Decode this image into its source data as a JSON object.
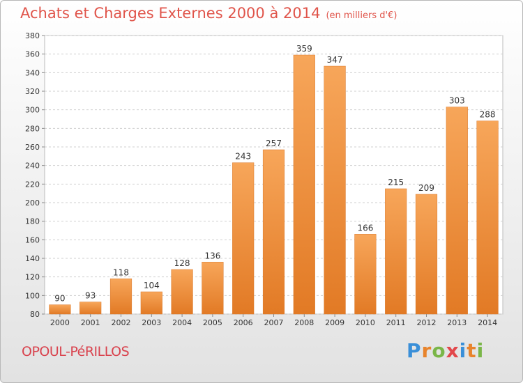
{
  "header": {
    "title": "Achats et Charges Externes 2000 à 2014",
    "unit": "(en milliers d'€)"
  },
  "footer": {
    "commune": "OPOUL-PéRILLOS",
    "logo_letters": [
      "P",
      "r",
      "o",
      "x",
      "i",
      "t",
      "i"
    ],
    "logo_colors": [
      "#3a8fd8",
      "#e8842c",
      "#7ab648",
      "#e2474b",
      "#3a8fd8",
      "#e8842c",
      "#7ab648"
    ]
  },
  "colors": {
    "bar_light": "#f7a65a",
    "bar_dark": "#e27a25",
    "title": "#e0544a"
  },
  "chart_data": {
    "type": "bar",
    "categories": [
      "2000",
      "2001",
      "2002",
      "2003",
      "2004",
      "2005",
      "2006",
      "2007",
      "2008",
      "2009",
      "2010",
      "2011",
      "2012",
      "2013",
      "2014"
    ],
    "values": [
      90,
      93,
      118,
      104,
      128,
      136,
      243,
      257,
      359,
      347,
      166,
      215,
      209,
      303,
      288
    ],
    "title": "Achats et Charges Externes 2000 à 2014",
    "ylim": [
      80,
      380
    ],
    "yticks": [
      80,
      100,
      120,
      140,
      160,
      180,
      200,
      220,
      240,
      260,
      280,
      300,
      320,
      340,
      360,
      380
    ],
    "grid": true
  }
}
